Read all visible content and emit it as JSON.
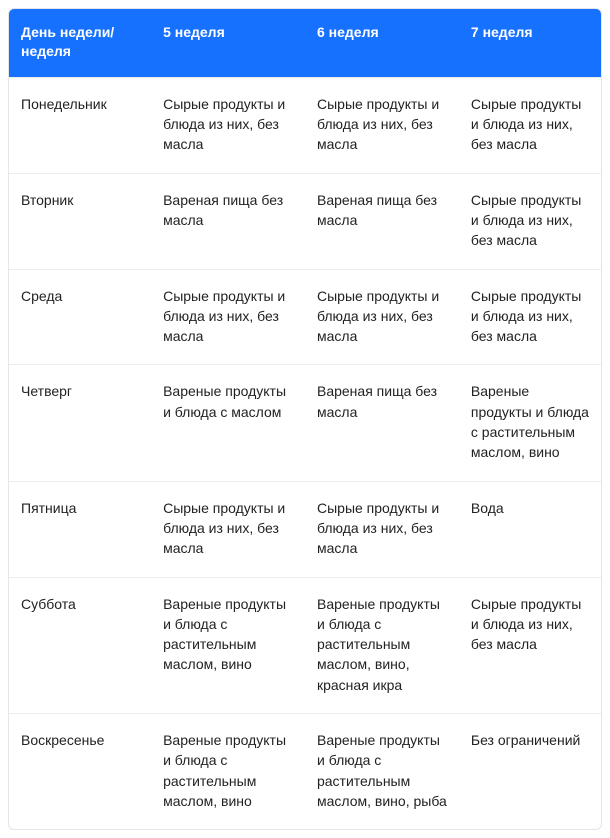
{
  "diet_table": {
    "type": "table",
    "header_bg": "#1771ff",
    "header_text_color": "#ffffff",
    "border_color": "#e5e5e5",
    "row_divider_color": "#ededed",
    "font_family": "Arial",
    "header_font_size_pt": 10.5,
    "body_font_size_pt": 10.5,
    "columns": [
      "День недели/ неделя",
      "5 неделя",
      "6 неделя",
      "7 неделя"
    ],
    "rows": [
      {
        "day": "Понедельник",
        "w5": "Сырые продукты и блюда из них, без масла",
        "w6": "Сырые продукты и блюда из них, без масла",
        "w7": "Сырые продукты и блюда из них, без масла"
      },
      {
        "day": "Вторник",
        "w5": "Вареная пища без масла",
        "w6": "Вареная пища без масла",
        "w7": "Сырые продукты и блюда из них, без масла"
      },
      {
        "day": "Среда",
        "w5": "Сырые продукты и блюда из них, без масла",
        "w6": "Сырые продукты и блюда из них, без масла",
        "w7": "Сырые продукты и блюда из них, без масла"
      },
      {
        "day": "Четверг",
        "w5": "Вареные продукты и блюда с маслом",
        "w6": "Вареная пища без масла",
        "w7": "Вареные продукты и блюда с растительным маслом, вино"
      },
      {
        "day": "Пятница",
        "w5": "Сырые продукты и блюда из них, без масла",
        "w6": "Сырые продукты и блюда из них, без масла",
        "w7": "Вода"
      },
      {
        "day": "Суббота",
        "w5": "Вареные продукты и блюда с растительным маслом, вино",
        "w6": "Вареные продукты и блюда с растительным маслом, вино, красная икра",
        "w7": "Сырые продукты и блюда из них, без масла"
      },
      {
        "day": "Воскресенье",
        "w5": "Вареные продукты и блюда с растительным маслом, вино",
        "w6": "Вареные продукты и блюда с растительным маслом, вино, рыба",
        "w7": "Без ограничений"
      }
    ]
  }
}
